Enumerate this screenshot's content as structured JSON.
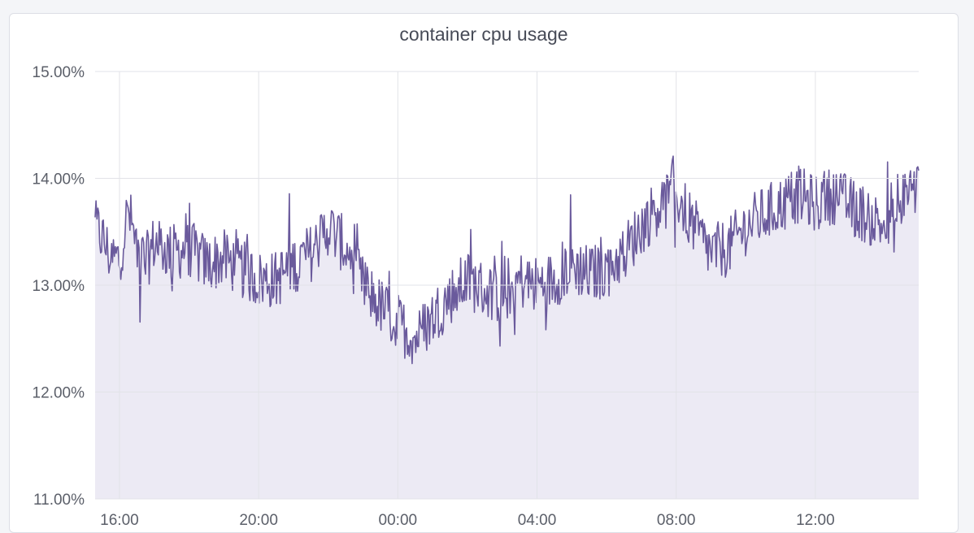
{
  "panel": {
    "title": "container cpu usage"
  },
  "chart_data": {
    "type": "area",
    "title": "container cpu usage",
    "xlabel": "",
    "ylabel": "",
    "y_unit": "%",
    "ylim": [
      11.0,
      15.0
    ],
    "y_ticks": [
      {
        "value": 11.0,
        "label": "11.00%"
      },
      {
        "value": 12.0,
        "label": "12.00%"
      },
      {
        "value": 13.0,
        "label": "13.00%"
      },
      {
        "value": 14.0,
        "label": "14.00%"
      },
      {
        "value": 15.0,
        "label": "15.00%"
      }
    ],
    "xlim": [
      "15:18",
      "14:58"
    ],
    "x_ticks": [
      {
        "value": "16:00",
        "label": "16:00"
      },
      {
        "value": "20:00",
        "label": "20:00"
      },
      {
        "value": "00:00",
        "label": "00:00"
      },
      {
        "value": "04:00",
        "label": "04:00"
      },
      {
        "value": "08:00",
        "label": "08:00"
      },
      {
        "value": "12:00",
        "label": "12:00"
      }
    ],
    "grid": true,
    "legend": "none",
    "colors": {
      "line": "#6a5a9c",
      "fill": "#eceaf4",
      "grid": "#e2e3e8"
    },
    "series": [
      {
        "x": [
          "15:18",
          "15:30",
          "15:45",
          "16:00",
          "16:15",
          "16:30",
          "16:45",
          "17:00",
          "17:30",
          "18:00",
          "18:30",
          "19:00",
          "19:30",
          "20:00",
          "20:30",
          "21:00",
          "21:30",
          "22:00",
          "22:30",
          "23:00",
          "23:30",
          "00:00",
          "00:30",
          "01:00",
          "01:30",
          "02:00",
          "02:30",
          "03:00",
          "03:30",
          "04:00",
          "04:30",
          "05:00",
          "05:30",
          "06:00",
          "06:30",
          "07:00",
          "07:30",
          "08:00",
          "08:30",
          "09:00",
          "09:30",
          "10:00",
          "10:30",
          "11:00",
          "11:30",
          "12:00",
          "12:30",
          "13:00",
          "13:30",
          "14:00",
          "14:30",
          "14:58"
        ],
        "values": [
          13.55,
          13.45,
          13.25,
          13.25,
          13.7,
          13.35,
          13.2,
          13.4,
          13.3,
          13.35,
          13.2,
          13.25,
          13.15,
          13.05,
          13.05,
          13.2,
          13.3,
          13.55,
          13.35,
          13.0,
          12.8,
          12.65,
          12.5,
          12.7,
          12.9,
          13.05,
          12.95,
          12.9,
          13.05,
          13.0,
          13.05,
          13.2,
          13.1,
          13.15,
          13.3,
          13.55,
          13.75,
          13.85,
          13.55,
          13.3,
          13.35,
          13.55,
          13.65,
          13.75,
          13.85,
          13.75,
          13.85,
          13.75,
          13.65,
          13.55,
          13.6,
          13.9
        ]
      }
    ]
  }
}
